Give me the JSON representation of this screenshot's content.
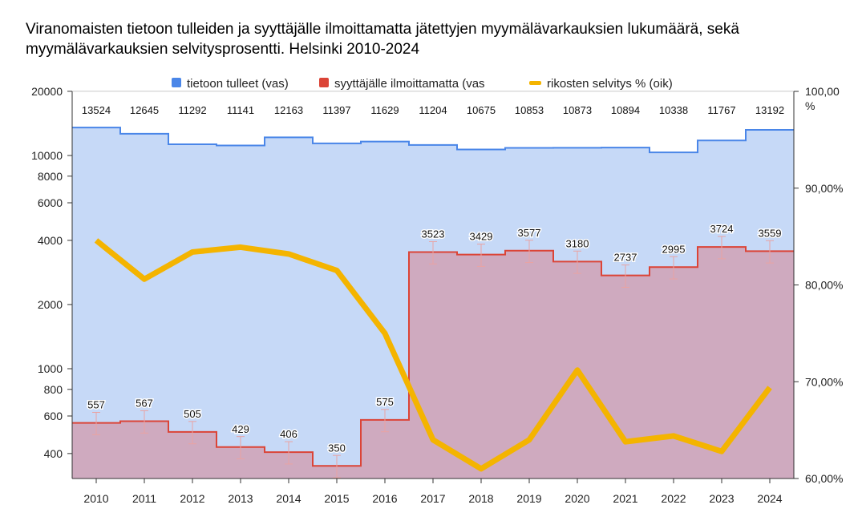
{
  "chart_data": {
    "type": "step-area+line",
    "title": "Viranomaisten tietoon tulleiden ja syyttäjälle ilmoittamatta jätettyjen myymälävarkauksien lukumäärä, sekä myymälävarkauksien selvitysprosentti. Helsinki 2010-2024",
    "categories": [
      "2010",
      "2011",
      "2012",
      "2013",
      "2014",
      "2015",
      "2016",
      "2017",
      "2018",
      "2019",
      "2020",
      "2021",
      "2022",
      "2023",
      "2024"
    ],
    "y_left": {
      "scale": "log",
      "ticks": [
        400,
        600,
        800,
        1000,
        2000,
        4000,
        6000,
        8000,
        10000,
        20000
      ]
    },
    "y_right": {
      "range": [
        60,
        100
      ],
      "ticks": [
        "60,00%",
        "70,00%",
        "80,00%",
        "90,00%",
        "100,00\n%"
      ]
    },
    "series": [
      {
        "name": "tietoon tulleet (vas)",
        "axis": "left",
        "color": "#4a86e8",
        "values": [
          13524,
          12645,
          11292,
          11141,
          12163,
          11397,
          11629,
          11204,
          10675,
          10853,
          10873,
          10894,
          10338,
          11767,
          13192
        ]
      },
      {
        "name": "syyttäjälle ilmoittamatta (vas",
        "axis": "left",
        "color": "#db4437",
        "values": [
          557,
          567,
          505,
          429,
          406,
          350,
          575,
          3523,
          3429,
          3577,
          3180,
          2737,
          2995,
          3724,
          3559
        ]
      },
      {
        "name": "rikosten selvitys % (oik)",
        "axis": "right",
        "color": "#f4b400",
        "values": [
          84.6,
          80.6,
          83.4,
          83.9,
          83.2,
          81.5,
          75.0,
          64.0,
          61.0,
          64.0,
          71.2,
          63.8,
          64.4,
          62.8,
          69.4
        ]
      }
    ],
    "legend_position": "top"
  }
}
